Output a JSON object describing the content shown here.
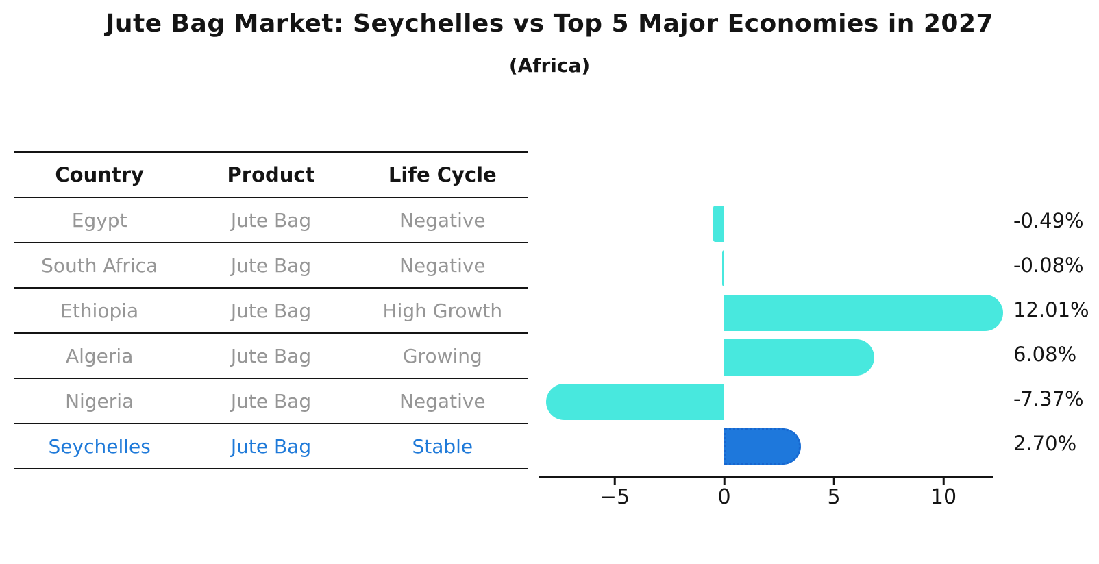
{
  "title": "Jute Bag Market: Seychelles vs Top 5 Major Economies in 2027",
  "subtitle": "(Africa)",
  "table": {
    "headers": [
      "Country",
      "Product",
      "Life Cycle"
    ],
    "rows": [
      {
        "country": "Egypt",
        "product": "Jute Bag",
        "life_cycle": "Negative",
        "highlight": false
      },
      {
        "country": "South Africa",
        "product": "Jute Bag",
        "life_cycle": "Negative",
        "highlight": false
      },
      {
        "country": "Ethiopia",
        "product": "Jute Bag",
        "life_cycle": "High Growth",
        "highlight": false
      },
      {
        "country": "Algeria",
        "product": "Jute Bag",
        "life_cycle": "Growing",
        "highlight": false
      },
      {
        "country": "Nigeria",
        "product": "Jute Bag",
        "life_cycle": "Negative",
        "highlight": false
      },
      {
        "country": "Seychelles",
        "product": "Jute Bag",
        "life_cycle": "Stable",
        "highlight": true
      }
    ]
  },
  "chart_data": {
    "type": "bar",
    "orientation": "horizontal",
    "title": "Jute Bag Market: Seychelles vs Top 5 Major Economies in 2027",
    "subtitle": "(Africa)",
    "categories": [
      "Egypt",
      "South Africa",
      "Ethiopia",
      "Algeria",
      "Nigeria",
      "Seychelles"
    ],
    "values": [
      -0.49,
      -0.08,
      12.01,
      6.08,
      -7.37,
      2.7
    ],
    "value_labels": [
      "-0.49%",
      "-0.08%",
      "12.01%",
      "6.08%",
      "-7.37%",
      "2.70%"
    ],
    "x_ticks": [
      -5,
      0,
      5,
      10
    ],
    "x_tick_labels": [
      "−5",
      "0",
      "5",
      "10"
    ],
    "xlim": [
      -8.55,
      12.4
    ],
    "grid": false,
    "legend": "none",
    "bar_color": "#48e8de",
    "highlight_color": "#1e78dc",
    "highlight_index": 5,
    "highlight_style": "dotted-border"
  }
}
